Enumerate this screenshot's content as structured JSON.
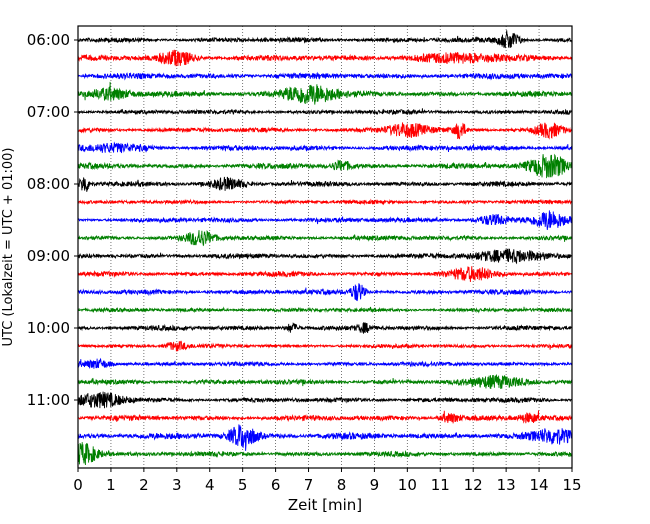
{
  "chart_data": {
    "type": "line",
    "subtype": "helicorder",
    "xlabel": "Zeit  [min]",
    "ylabel": "UTC (Lokalzeit = UTC + 01:00)",
    "xlim": [
      0,
      15
    ],
    "xticks": [
      "0",
      "1",
      "2",
      "3",
      "4",
      "5",
      "6",
      "7",
      "8",
      "9",
      "10",
      "11",
      "12",
      "13",
      "14",
      "15"
    ],
    "yticks": [
      {
        "label": "06:00",
        "row": 0
      },
      {
        "label": "07:00",
        "row": 4
      },
      {
        "label": "08:00",
        "row": 8
      },
      {
        "label": "09:00",
        "row": 12
      },
      {
        "label": "10:00",
        "row": 16
      },
      {
        "label": "11:00",
        "row": 20
      }
    ],
    "grid": "vertical-dotted",
    "colors": [
      "#000000",
      "#ff0000",
      "#0000ff",
      "#008000"
    ],
    "row_count": 24,
    "row_minutes": 15,
    "start_time": "06:00",
    "noise_levels": [
      1.0,
      1.2,
      1.2,
      1.1,
      0.9,
      1.0,
      1.1,
      1.1,
      1.0,
      0.8,
      1.0,
      1.0,
      1.0,
      1.0,
      1.0,
      0.8,
      1.0,
      0.8,
      0.9,
      1.0,
      1.0,
      1.1,
      1.3,
      1.0
    ],
    "events": [
      {
        "row": 0,
        "t": 13.1,
        "amp": 4,
        "width": 0.3
      },
      {
        "row": 1,
        "t": 3.0,
        "amp": 3,
        "width": 0.5
      },
      {
        "row": 1,
        "t": 11.5,
        "amp": 1.5,
        "width": 1.5
      },
      {
        "row": 3,
        "t": 1.0,
        "amp": 2.5,
        "width": 0.6
      },
      {
        "row": 3,
        "t": 7.0,
        "amp": 4.5,
        "width": 0.8
      },
      {
        "row": 5,
        "t": 10.0,
        "amp": 3,
        "width": 0.6
      },
      {
        "row": 5,
        "t": 11.6,
        "amp": 4,
        "width": 0.15
      },
      {
        "row": 5,
        "t": 14.3,
        "amp": 3,
        "width": 0.4
      },
      {
        "row": 6,
        "t": 1.0,
        "amp": 1.5,
        "width": 1.0
      },
      {
        "row": 7,
        "t": 8.0,
        "amp": 2,
        "width": 0.3
      },
      {
        "row": 7,
        "t": 14.3,
        "amp": 5,
        "width": 0.6
      },
      {
        "row": 8,
        "t": 0.2,
        "amp": 4,
        "width": 0.15
      },
      {
        "row": 8,
        "t": 4.5,
        "amp": 2.5,
        "width": 0.5
      },
      {
        "row": 10,
        "t": 14.3,
        "amp": 4,
        "width": 0.5
      },
      {
        "row": 10,
        "t": 12.6,
        "amp": 2,
        "width": 0.5
      },
      {
        "row": 11,
        "t": 3.7,
        "amp": 3,
        "width": 0.4
      },
      {
        "row": 12,
        "t": 13.2,
        "amp": 2.5,
        "width": 1.2
      },
      {
        "row": 13,
        "t": 12.0,
        "amp": 2.5,
        "width": 0.7
      },
      {
        "row": 14,
        "t": 8.5,
        "amp": 4,
        "width": 0.2
      },
      {
        "row": 16,
        "t": 6.5,
        "amp": 2,
        "width": 0.2
      },
      {
        "row": 16,
        "t": 8.7,
        "amp": 1.8,
        "width": 0.2
      },
      {
        "row": 17,
        "t": 3.0,
        "amp": 1.8,
        "width": 0.3
      },
      {
        "row": 18,
        "t": 0.6,
        "amp": 1.8,
        "width": 0.4
      },
      {
        "row": 19,
        "t": 12.8,
        "amp": 2.5,
        "width": 0.8
      },
      {
        "row": 20,
        "t": 0.7,
        "amp": 3,
        "width": 0.7
      },
      {
        "row": 21,
        "t": 11.3,
        "amp": 2,
        "width": 0.3
      },
      {
        "row": 21,
        "t": 13.7,
        "amp": 1.8,
        "width": 0.3
      },
      {
        "row": 22,
        "t": 5.0,
        "amp": 5,
        "width": 0.4
      },
      {
        "row": 22,
        "t": 14.5,
        "amp": 3,
        "width": 0.6
      },
      {
        "row": 23,
        "t": 0.1,
        "amp": 5,
        "width": 0.5
      }
    ]
  }
}
